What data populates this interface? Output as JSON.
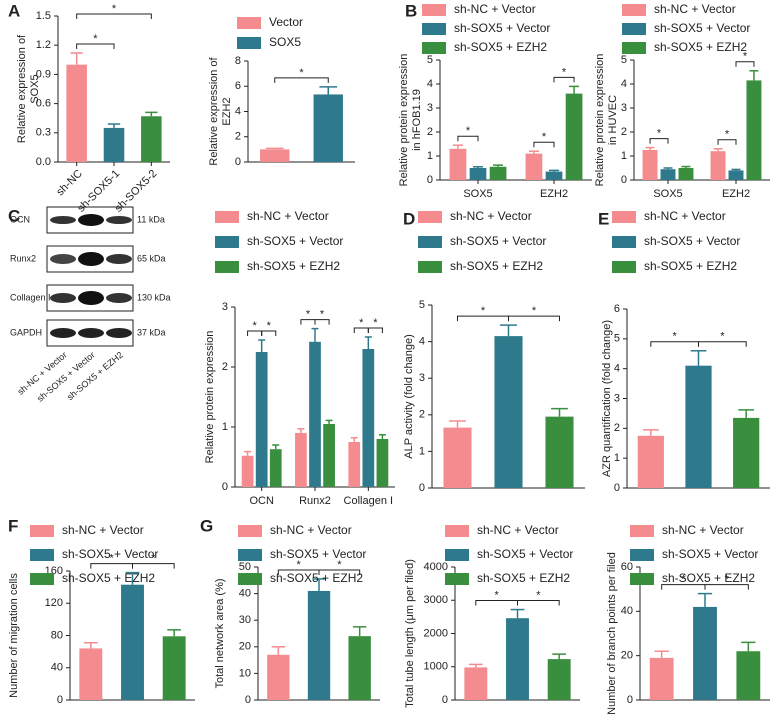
{
  "chart_data": [
    {
      "type": "bar",
      "panel": "A",
      "ylabel": [
        "Relative expression of",
        "SOX5"
      ],
      "categories": [
        "sh-NC",
        "sh-SOX5-1",
        "sh-SOX5-2"
      ],
      "values": [
        1.0,
        0.35,
        0.47
      ],
      "errors": [
        0.12,
        0.04,
        0.04
      ],
      "colors": [
        "#f48b8f",
        "#2e7a8c",
        "#3a8f3f"
      ],
      "ylim": [
        0,
        1.5
      ],
      "yticks": [
        {
          "value": 0,
          "label": "0.0"
        },
        0.3,
        0.6,
        0.9,
        1.2,
        1.5
      ],
      "annotations": [
        "*",
        "*"
      ]
    },
    {
      "type": "bar",
      "ylabel": [
        "Relative expression of",
        "EZH2"
      ],
      "series": [
        {
          "name": "Vector",
          "color": "#f48b8f",
          "values": [
            1.0
          ],
          "errors": [
            0.08
          ]
        },
        {
          "name": "SOX5",
          "color": "#2e7a8c",
          "values": [
            5.35
          ],
          "errors": [
            0.6
          ]
        }
      ],
      "ylim": [
        0,
        8
      ],
      "yticks": [
        0,
        2,
        4,
        6,
        8
      ],
      "annotations": [
        "*"
      ]
    },
    {
      "type": "bar",
      "panel": "B",
      "ylabel": [
        "Relative protein expression",
        "in hFOB1.19"
      ],
      "categories": [
        "SOX5",
        "EZH2"
      ],
      "series": [
        {
          "name": "sh-NC + Vector",
          "color": "#f48b8f",
          "values": [
            1.3,
            1.1
          ],
          "errors": [
            0.15,
            0.1
          ]
        },
        {
          "name": "sh-SOX5 + Vector",
          "color": "#2e7a8c",
          "values": [
            0.5,
            0.35
          ],
          "errors": [
            0.05,
            0.05
          ]
        },
        {
          "name": "sh-SOX5 + EZH2",
          "color": "#3a8f3f",
          "values": [
            0.55,
            3.6
          ],
          "errors": [
            0.07,
            0.3
          ]
        }
      ],
      "ylim": [
        0,
        5
      ],
      "yticks": [
        0,
        1,
        2,
        3,
        4,
        5
      ],
      "annotations": [
        "*",
        "*",
        "*"
      ]
    },
    {
      "type": "bar",
      "ylabel": [
        "Relative protein expression",
        "in HUVEC"
      ],
      "categories": [
        "SOX5",
        "EZH2"
      ],
      "series": [
        {
          "name": "sh-NC + Vector",
          "color": "#f48b8f",
          "values": [
            1.25,
            1.2
          ],
          "errors": [
            0.1,
            0.1
          ]
        },
        {
          "name": "sh-SOX5 + Vector",
          "color": "#2e7a8c",
          "values": [
            0.45,
            0.4
          ],
          "errors": [
            0.05,
            0.04
          ]
        },
        {
          "name": "sh-SOX5 + EZH2",
          "color": "#3a8f3f",
          "values": [
            0.5,
            4.15
          ],
          "errors": [
            0.06,
            0.4
          ]
        }
      ],
      "ylim": [
        0,
        5
      ],
      "yticks": [
        0,
        1,
        2,
        3,
        4,
        5
      ],
      "annotations": [
        "*",
        "*",
        "*"
      ]
    },
    {
      "type": "bar",
      "panel": "C",
      "ylabel": [
        "Relative protein expression"
      ],
      "categories": [
        "OCN",
        "Runx2",
        "Collagen I"
      ],
      "series": [
        {
          "name": "sh-NC + Vector",
          "color": "#f48b8f",
          "values": [
            0.52,
            0.9,
            0.75
          ],
          "errors": [
            0.07,
            0.07,
            0.07
          ]
        },
        {
          "name": "sh-SOX5 + Vector",
          "color": "#2e7a8c",
          "values": [
            2.25,
            2.42,
            2.3
          ],
          "errors": [
            0.2,
            0.22,
            0.2
          ]
        },
        {
          "name": "sh-SOX5 + EZH2",
          "color": "#3a8f3f",
          "values": [
            0.63,
            1.05,
            0.8
          ],
          "errors": [
            0.07,
            0.06,
            0.07
          ]
        }
      ],
      "ylim": [
        0,
        3
      ],
      "yticks": [
        0,
        1,
        2,
        3
      ],
      "annotations": [
        "*",
        "*",
        "*",
        "*",
        "*",
        "*"
      ]
    },
    {
      "type": "bar",
      "panel": "D",
      "ylabel": [
        "ALP activity (fold change)"
      ],
      "series": [
        {
          "name": "sh-NC + Vector",
          "color": "#f48b8f",
          "values": [
            1.65
          ],
          "errors": [
            0.18
          ]
        },
        {
          "name": "sh-SOX5 + Vector",
          "color": "#2e7a8c",
          "values": [
            4.15
          ],
          "errors": [
            0.3
          ]
        },
        {
          "name": "sh-SOX5 + EZH2",
          "color": "#3a8f3f",
          "values": [
            1.95
          ],
          "errors": [
            0.22
          ]
        }
      ],
      "ylim": [
        0,
        5
      ],
      "yticks": [
        0,
        1,
        2,
        3,
        4,
        5
      ],
      "annotations": [
        "*",
        "*"
      ]
    },
    {
      "type": "bar",
      "panel": "E",
      "ylabel": [
        "AZR quantification (fold change)"
      ],
      "series": [
        {
          "name": "sh-NC + Vector",
          "color": "#f48b8f",
          "values": [
            1.75
          ],
          "errors": [
            0.2
          ]
        },
        {
          "name": "sh-SOX5 + Vector",
          "color": "#2e7a8c",
          "values": [
            4.1
          ],
          "errors": [
            0.5
          ]
        },
        {
          "name": "sh-SOX5 + EZH2",
          "color": "#3a8f3f",
          "values": [
            2.35
          ],
          "errors": [
            0.27
          ]
        }
      ],
      "ylim": [
        0,
        6
      ],
      "yticks": [
        0,
        1,
        2,
        3,
        4,
        5,
        6
      ],
      "annotations": [
        "*",
        "*"
      ]
    },
    {
      "type": "bar",
      "panel": "F",
      "ylabel": [
        "Number of migration cells"
      ],
      "series": [
        {
          "name": "sh-NC + Vector",
          "color": "#f48b8f",
          "values": [
            64
          ],
          "errors": [
            7
          ]
        },
        {
          "name": "sh-SOX5 + Vector",
          "color": "#2e7a8c",
          "values": [
            143
          ],
          "errors": [
            15
          ]
        },
        {
          "name": "sh-SOX5 + EZH2",
          "color": "#3a8f3f",
          "values": [
            79
          ],
          "errors": [
            8
          ]
        }
      ],
      "ylim": [
        0,
        160
      ],
      "yticks": [
        0,
        40,
        80,
        120,
        160
      ],
      "annotations": [
        "*",
        "*"
      ]
    },
    {
      "type": "bar",
      "panel": "G",
      "ylabel": [
        "Total network area (%)"
      ],
      "series": [
        {
          "name": "sh-NC + Vector",
          "color": "#f48b8f",
          "values": [
            17
          ],
          "errors": [
            3
          ]
        },
        {
          "name": "sh-SOX5 + Vector",
          "color": "#2e7a8c",
          "values": [
            41
          ],
          "errors": [
            4.5
          ]
        },
        {
          "name": "sh-SOX5 + EZH2",
          "color": "#3a8f3f",
          "values": [
            24
          ],
          "errors": [
            3.5
          ]
        }
      ],
      "ylim": [
        0,
        50
      ],
      "yticks": [
        0,
        10,
        20,
        30,
        40,
        50
      ],
      "annotations": [
        "*",
        "*"
      ]
    },
    {
      "type": "bar",
      "ylabel": [
        "Total tube length (μm per filed)"
      ],
      "series": [
        {
          "name": "sh-NC + Vector",
          "color": "#f48b8f",
          "values": [
            980
          ],
          "errors": [
            90
          ]
        },
        {
          "name": "sh-SOX5 + Vector",
          "color": "#2e7a8c",
          "values": [
            2460
          ],
          "errors": [
            260
          ]
        },
        {
          "name": "sh-SOX5 + EZH2",
          "color": "#3a8f3f",
          "values": [
            1230
          ],
          "errors": [
            150
          ]
        }
      ],
      "ylim": [
        0,
        4000
      ],
      "yticks": [
        0,
        1000,
        2000,
        3000,
        4000
      ],
      "annotations": [
        "*",
        "*"
      ]
    },
    {
      "type": "bar",
      "ylabel": [
        "Number of branch points per filed"
      ],
      "series": [
        {
          "name": "sh-NC + Vector",
          "color": "#f48b8f",
          "values": [
            19
          ],
          "errors": [
            3
          ]
        },
        {
          "name": "sh-SOX5 + Vector",
          "color": "#2e7a8c",
          "values": [
            42
          ],
          "errors": [
            6
          ]
        },
        {
          "name": "sh-SOX5 + EZH2",
          "color": "#3a8f3f",
          "values": [
            22
          ],
          "errors": [
            4
          ]
        }
      ],
      "ylim": [
        0,
        60
      ],
      "yticks": [
        0,
        20,
        40,
        60
      ],
      "annotations": [
        "*",
        "*"
      ]
    }
  ],
  "blot": {
    "proteins": [
      "OCN",
      "Runx2",
      "Collagen I",
      "GAPDH"
    ],
    "sizes": [
      "11 kDa",
      "65 kDa",
      "130 kDa",
      "37 kDa"
    ],
    "lanes": [
      "sh-NC + Vector",
      "sh-SOX5 + Vector",
      "sh-SOX5 + EZH2"
    ]
  }
}
